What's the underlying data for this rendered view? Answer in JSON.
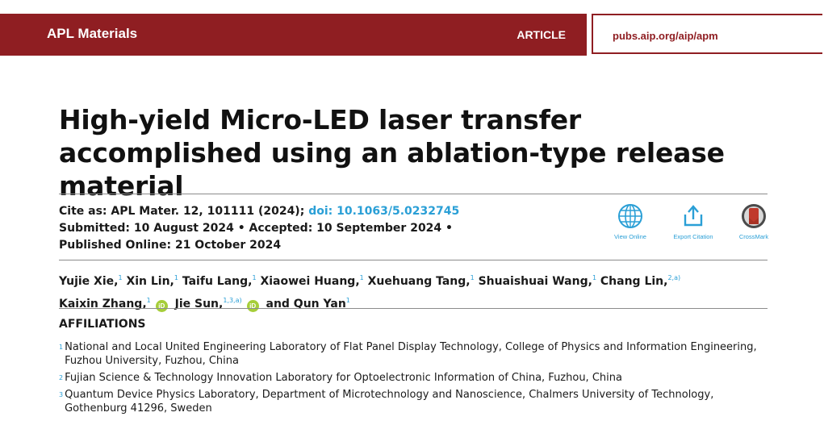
{
  "header": {
    "journal": "APL Materials",
    "article_type": "ARTICLE",
    "url": "pubs.aip.org/aip/apm"
  },
  "title": "High-yield Micro-LED laser transfer accomplished using an ablation-type release material",
  "citation": {
    "cite_prefix": "Cite as: APL Mater. 12, 101111 (2024);",
    "doi": "doi: 10.1063/5.0232745",
    "submitted": "Submitted: 10 August 2024 • Accepted: 10 September 2024 •",
    "published": "Published Online: 21 October 2024"
  },
  "actions": {
    "view_online": "View Online",
    "export_citation": "Export Citation",
    "crossmark": "CrossMark"
  },
  "authors": [
    {
      "name": "Yujie Xie,",
      "sup": "1"
    },
    {
      "name": "Xin Lin,",
      "sup": "1"
    },
    {
      "name": "Taifu Lang,",
      "sup": "1"
    },
    {
      "name": "Xiaowei Huang,",
      "sup": "1"
    },
    {
      "name": "Xuehuang Tang,",
      "sup": "1"
    },
    {
      "name": "Shuaishuai Wang,",
      "sup": "1"
    },
    {
      "name": "Chang Lin,",
      "sup": "2,a)"
    },
    {
      "name": "Kaixin Zhang,",
      "sup": "1"
    },
    {
      "name": "Jie Sun,",
      "sup": "1,3,a)"
    },
    {
      "name": "and Qun Yan",
      "sup": "1"
    }
  ],
  "orcid_label": "iD",
  "affiliations_heading": "AFFILIATIONS",
  "affiliations": [
    {
      "num": "1",
      "text": "National and Local United Engineering Laboratory of Flat Panel Display Technology, College of Physics and Information Engineering, Fuzhou University, Fuzhou, China"
    },
    {
      "num": "2",
      "text": "Fujian Science & Technology Innovation Laboratory for Optoelectronic Information of China, Fuzhou, China"
    },
    {
      "num": "3",
      "text": "Quantum Device Physics Laboratory, Department of Microtechnology and Nanoscience, Chalmers University of Technology, Gothenburg 41296, Sweden"
    }
  ],
  "colors": {
    "brand": "#8f1e22",
    "link": "#2a9fd6",
    "orcid": "#a6ce39"
  },
  "icons": [
    "globe-icon",
    "export-icon",
    "crossmark-icon",
    "orcid-icon"
  ]
}
